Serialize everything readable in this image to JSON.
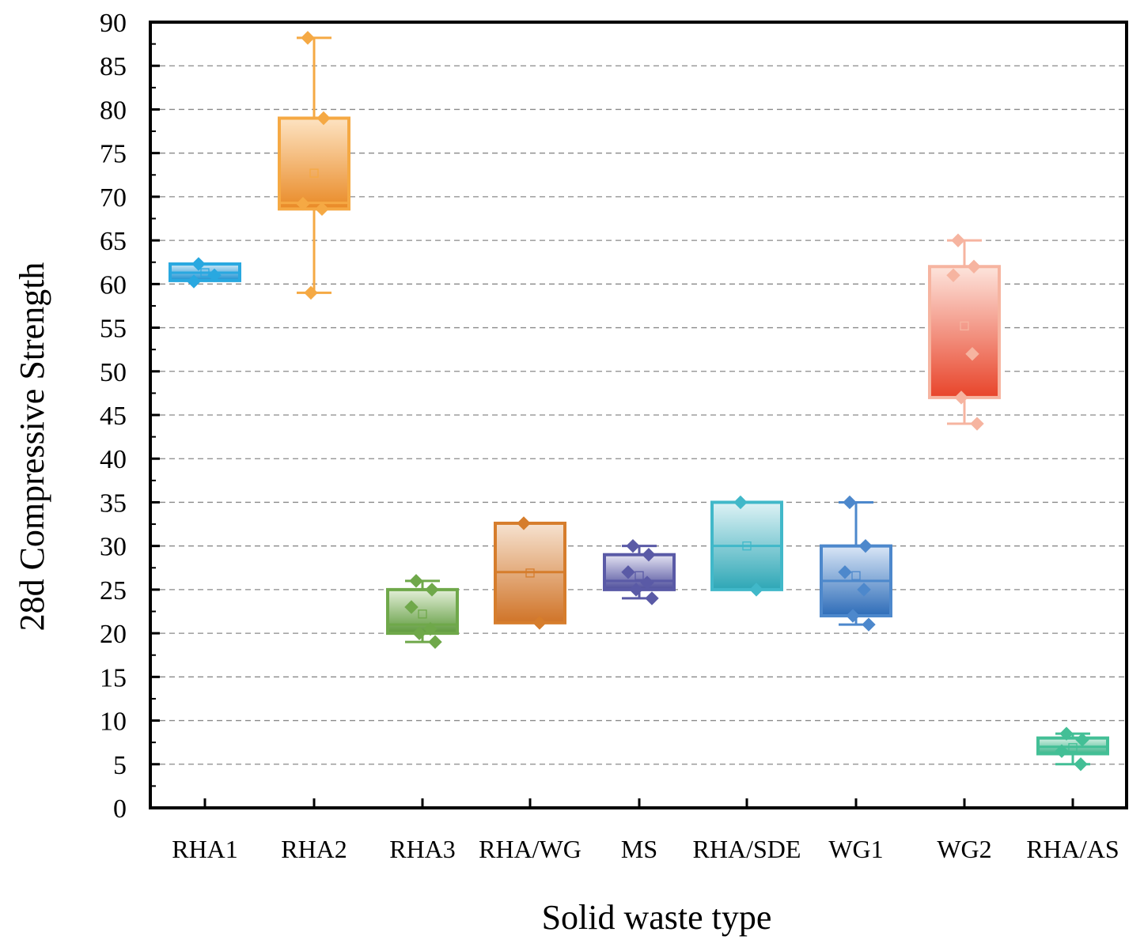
{
  "chart_data": {
    "type": "box",
    "xlabel": "Solid waste type",
    "ylabel": "28d Compressive Strength",
    "ylim": [
      0,
      90
    ],
    "y_major_step": 5,
    "grid": "horizontal-dashed",
    "categories": [
      "RHA1",
      "RHA2",
      "RHA3",
      "RHA/WG",
      "MS",
      "RHA/SDE",
      "WG1",
      "WG2",
      "RHA/AS"
    ],
    "boxes": [
      {
        "name": "RHA1",
        "color": "#29a8e0",
        "light": "#cfe9f7",
        "dark": "#1a8fd0",
        "q1": 60.4,
        "median": 61.3,
        "q3": 62.3,
        "whisker_low": 60.4,
        "whisker_high": 62.3,
        "mean": 61.3,
        "points": [
          62.3,
          61.0,
          60.3
        ]
      },
      {
        "name": "RHA2",
        "color": "#f5a944",
        "light": "#fde3c2",
        "dark": "#e98a26",
        "q1": 68.6,
        "median": 69.3,
        "q3": 79.0,
        "whisker_low": 59.0,
        "whisker_high": 88.2,
        "mean": 72.7,
        "points": [
          88.2,
          79.0,
          69.2,
          68.6,
          59.0
        ]
      },
      {
        "name": "RHA3",
        "color": "#6fa84a",
        "light": "#e3efd8",
        "dark": "#5e9a3c",
        "q1": 20.0,
        "median": 21.0,
        "q3": 25.0,
        "whisker_low": 19.0,
        "whisker_high": 26.0,
        "mean": 22.2,
        "points": [
          26.0,
          25.0,
          23.0,
          20.5,
          20.0,
          19.0
        ]
      },
      {
        "name": "RHA/WG",
        "color": "#d67d2c",
        "light": "#f6e2d0",
        "dark": "#d07428",
        "q1": 21.2,
        "median": 27.0,
        "q3": 32.6,
        "whisker_low": 21.2,
        "whisker_high": 32.6,
        "mean": 26.9,
        "points": [
          32.6,
          21.2
        ]
      },
      {
        "name": "MS",
        "color": "#5a5aa6",
        "light": "#e3e2f2",
        "dark": "#4f4f9c",
        "q1": 25.0,
        "median": 26.0,
        "q3": 29.0,
        "whisker_low": 24.0,
        "whisker_high": 30.0,
        "mean": 26.6,
        "points": [
          30.0,
          29.0,
          27.0,
          25.8,
          25.0,
          24.0
        ]
      },
      {
        "name": "RHA/SDE",
        "color": "#41b8c9",
        "light": "#def2f5",
        "dark": "#2ea7b6",
        "q1": 25.0,
        "median": 30.0,
        "q3": 35.0,
        "whisker_low": 25.0,
        "whisker_high": 35.0,
        "mean": 30.0,
        "points": [
          35.0,
          25.0
        ]
      },
      {
        "name": "WG1",
        "color": "#4d88cc",
        "light": "#d9e6f6",
        "dark": "#2d6cb8",
        "q1": 22.0,
        "median": 26.0,
        "q3": 30.0,
        "whisker_low": 21.0,
        "whisker_high": 35.0,
        "mean": 26.6,
        "points": [
          35.0,
          30.0,
          27.0,
          25.0,
          22.0,
          21.0
        ]
      },
      {
        "name": "WG2",
        "color": "#f6b4a0",
        "light": "#fde4dc",
        "dark": "#e8442a",
        "q1": 47.0,
        "median": 47.0,
        "q3": 62.0,
        "whisker_low": 44.0,
        "whisker_high": 65.0,
        "mean": 55.2,
        "points": [
          65.0,
          62.0,
          61.0,
          52.0,
          47.0,
          44.0
        ]
      },
      {
        "name": "RHA/AS",
        "color": "#43bf96",
        "light": "#d7f0e5",
        "dark": "#3bb58b",
        "q1": 6.2,
        "median": 7.0,
        "q3": 8.0,
        "whisker_low": 5.0,
        "whisker_high": 8.5,
        "mean": 6.9,
        "points": [
          8.5,
          7.8,
          6.5,
          5.0
        ]
      }
    ]
  }
}
